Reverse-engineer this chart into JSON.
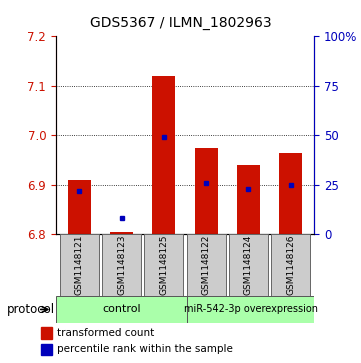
{
  "title": "GDS5367 / ILMN_1802963",
  "samples": [
    "GSM1148121",
    "GSM1148123",
    "GSM1148125",
    "GSM1148122",
    "GSM1148124",
    "GSM1148126"
  ],
  "transformed_count_top": [
    6.91,
    6.805,
    7.12,
    6.975,
    6.94,
    6.965
  ],
  "transformed_count_bottom": [
    6.8,
    6.8,
    6.8,
    6.8,
    6.8,
    6.8
  ],
  "percentile_rank": [
    22,
    8,
    49,
    26,
    23,
    25
  ],
  "ylim": [
    6.8,
    7.2
  ],
  "ylim_right": [
    0,
    100
  ],
  "yticks_left": [
    6.8,
    6.9,
    7.0,
    7.1,
    7.2
  ],
  "yticks_right": [
    0,
    25,
    50,
    75,
    100
  ],
  "ytick_labels_right": [
    "0",
    "25",
    "50",
    "75",
    "100%"
  ],
  "bar_color": "#cc1100",
  "dot_color": "#0000bb",
  "protocol_label": "protocol",
  "legend_bar_label": "transformed count",
  "legend_dot_label": "percentile rank within the sample",
  "bar_width": 0.55,
  "title_fontsize": 10,
  "tick_fontsize": 8.5,
  "sample_fontsize": 6.5,
  "group_fontsize_control": 8,
  "group_fontsize_mir": 7,
  "legend_fontsize": 7.5
}
